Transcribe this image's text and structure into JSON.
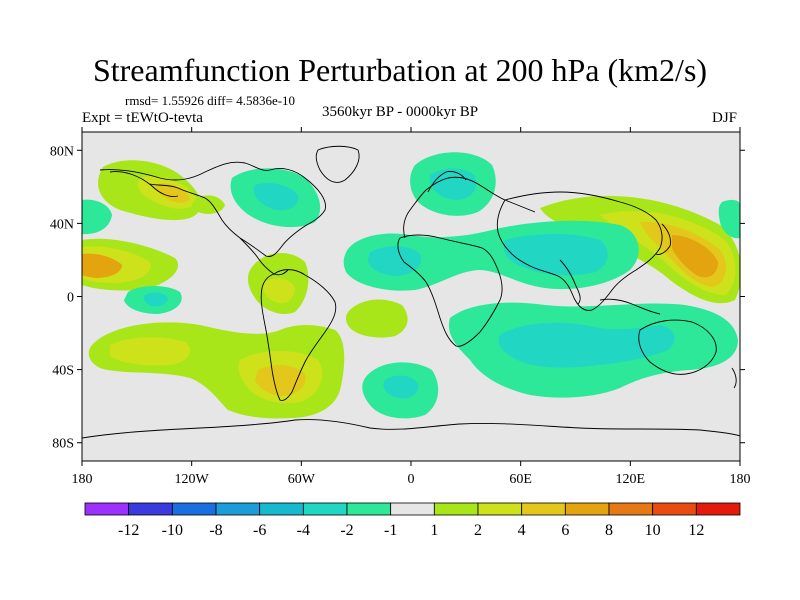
{
  "title": "Streamfunction Perturbation at 200 hPa (km2/s)",
  "stats_text": "rmsd= 1.55926 diff= 4.5836e-10",
  "left_label": "Expt = tEWtO-tevta",
  "center_label": "3560kyr BP - 0000kyr BP",
  "right_label": "DJF",
  "lat_ticks": [
    {
      "lat": 80,
      "label": "80N"
    },
    {
      "lat": 40,
      "label": "40N"
    },
    {
      "lat": 0,
      "label": "0"
    },
    {
      "lat": -40,
      "label": "40S"
    },
    {
      "lat": -80,
      "label": "80S"
    }
  ],
  "lon_ticks": [
    {
      "lon": -180,
      "label": "180"
    },
    {
      "lon": -120,
      "label": "120W"
    },
    {
      "lon": -60,
      "label": "60W"
    },
    {
      "lon": 0,
      "label": "0"
    },
    {
      "lon": 60,
      "label": "60E"
    },
    {
      "lon": 120,
      "label": "120E"
    },
    {
      "lon": 180,
      "label": "180"
    }
  ],
  "colorbar": {
    "colors": [
      "#9b30ff",
      "#3a3adf",
      "#1a6fe0",
      "#1c9cd8",
      "#17b9cf",
      "#21d6c2",
      "#2ee89a",
      "#e6e6e6",
      "#a8e61a",
      "#cde21b",
      "#e3c81b",
      "#e3a40f",
      "#e67914",
      "#e84c10",
      "#e31a0c"
    ],
    "labels": [
      "-12",
      "-10",
      "-8",
      "-6",
      "-4",
      "-2",
      "-1",
      "1",
      "2",
      "4",
      "6",
      "8",
      "10",
      "12"
    ]
  },
  "chart_data": {
    "type": "heatmap",
    "title": "Streamfunction Perturbation at 200 hPa (km2/s)",
    "xlabel": "",
    "ylabel": "",
    "xlim": [
      -180,
      180
    ],
    "ylim": [
      -90,
      90
    ],
    "contour_levels": [
      -12,
      -10,
      -8,
      -6,
      -4,
      -2,
      -1,
      1,
      2,
      4,
      6,
      8,
      10,
      12
    ],
    "anomalies": [
      {
        "lon": -168,
        "lat": 57,
        "value": 3
      },
      {
        "lon": -120,
        "lat": 57,
        "value": 2
      },
      {
        "lon": -180,
        "lat": 19,
        "value": 5
      },
      {
        "lon": 140,
        "lat": 22,
        "value": 5
      },
      {
        "lon": -85,
        "lat": -5,
        "value": 3
      },
      {
        "lon": -125,
        "lat": -28,
        "value": 3
      },
      {
        "lon": -65,
        "lat": -45,
        "value": 5
      },
      {
        "lon": -60,
        "lat": 58,
        "value": -2
      },
      {
        "lon": -165,
        "lat": 35,
        "value": -2
      },
      {
        "lon": 10,
        "lat": 55,
        "value": -2
      },
      {
        "lon": 50,
        "lat": 17,
        "value": -3
      },
      {
        "lon": 50,
        "lat": -27,
        "value": -3
      },
      {
        "lon": -10,
        "lat": -45,
        "value": -3
      },
      {
        "lon": -145,
        "lat": -2,
        "value": -2
      },
      {
        "lon": 175,
        "lat": 44,
        "value": -2
      },
      {
        "lon": -20,
        "lat": -12,
        "value": 1.5
      }
    ]
  }
}
